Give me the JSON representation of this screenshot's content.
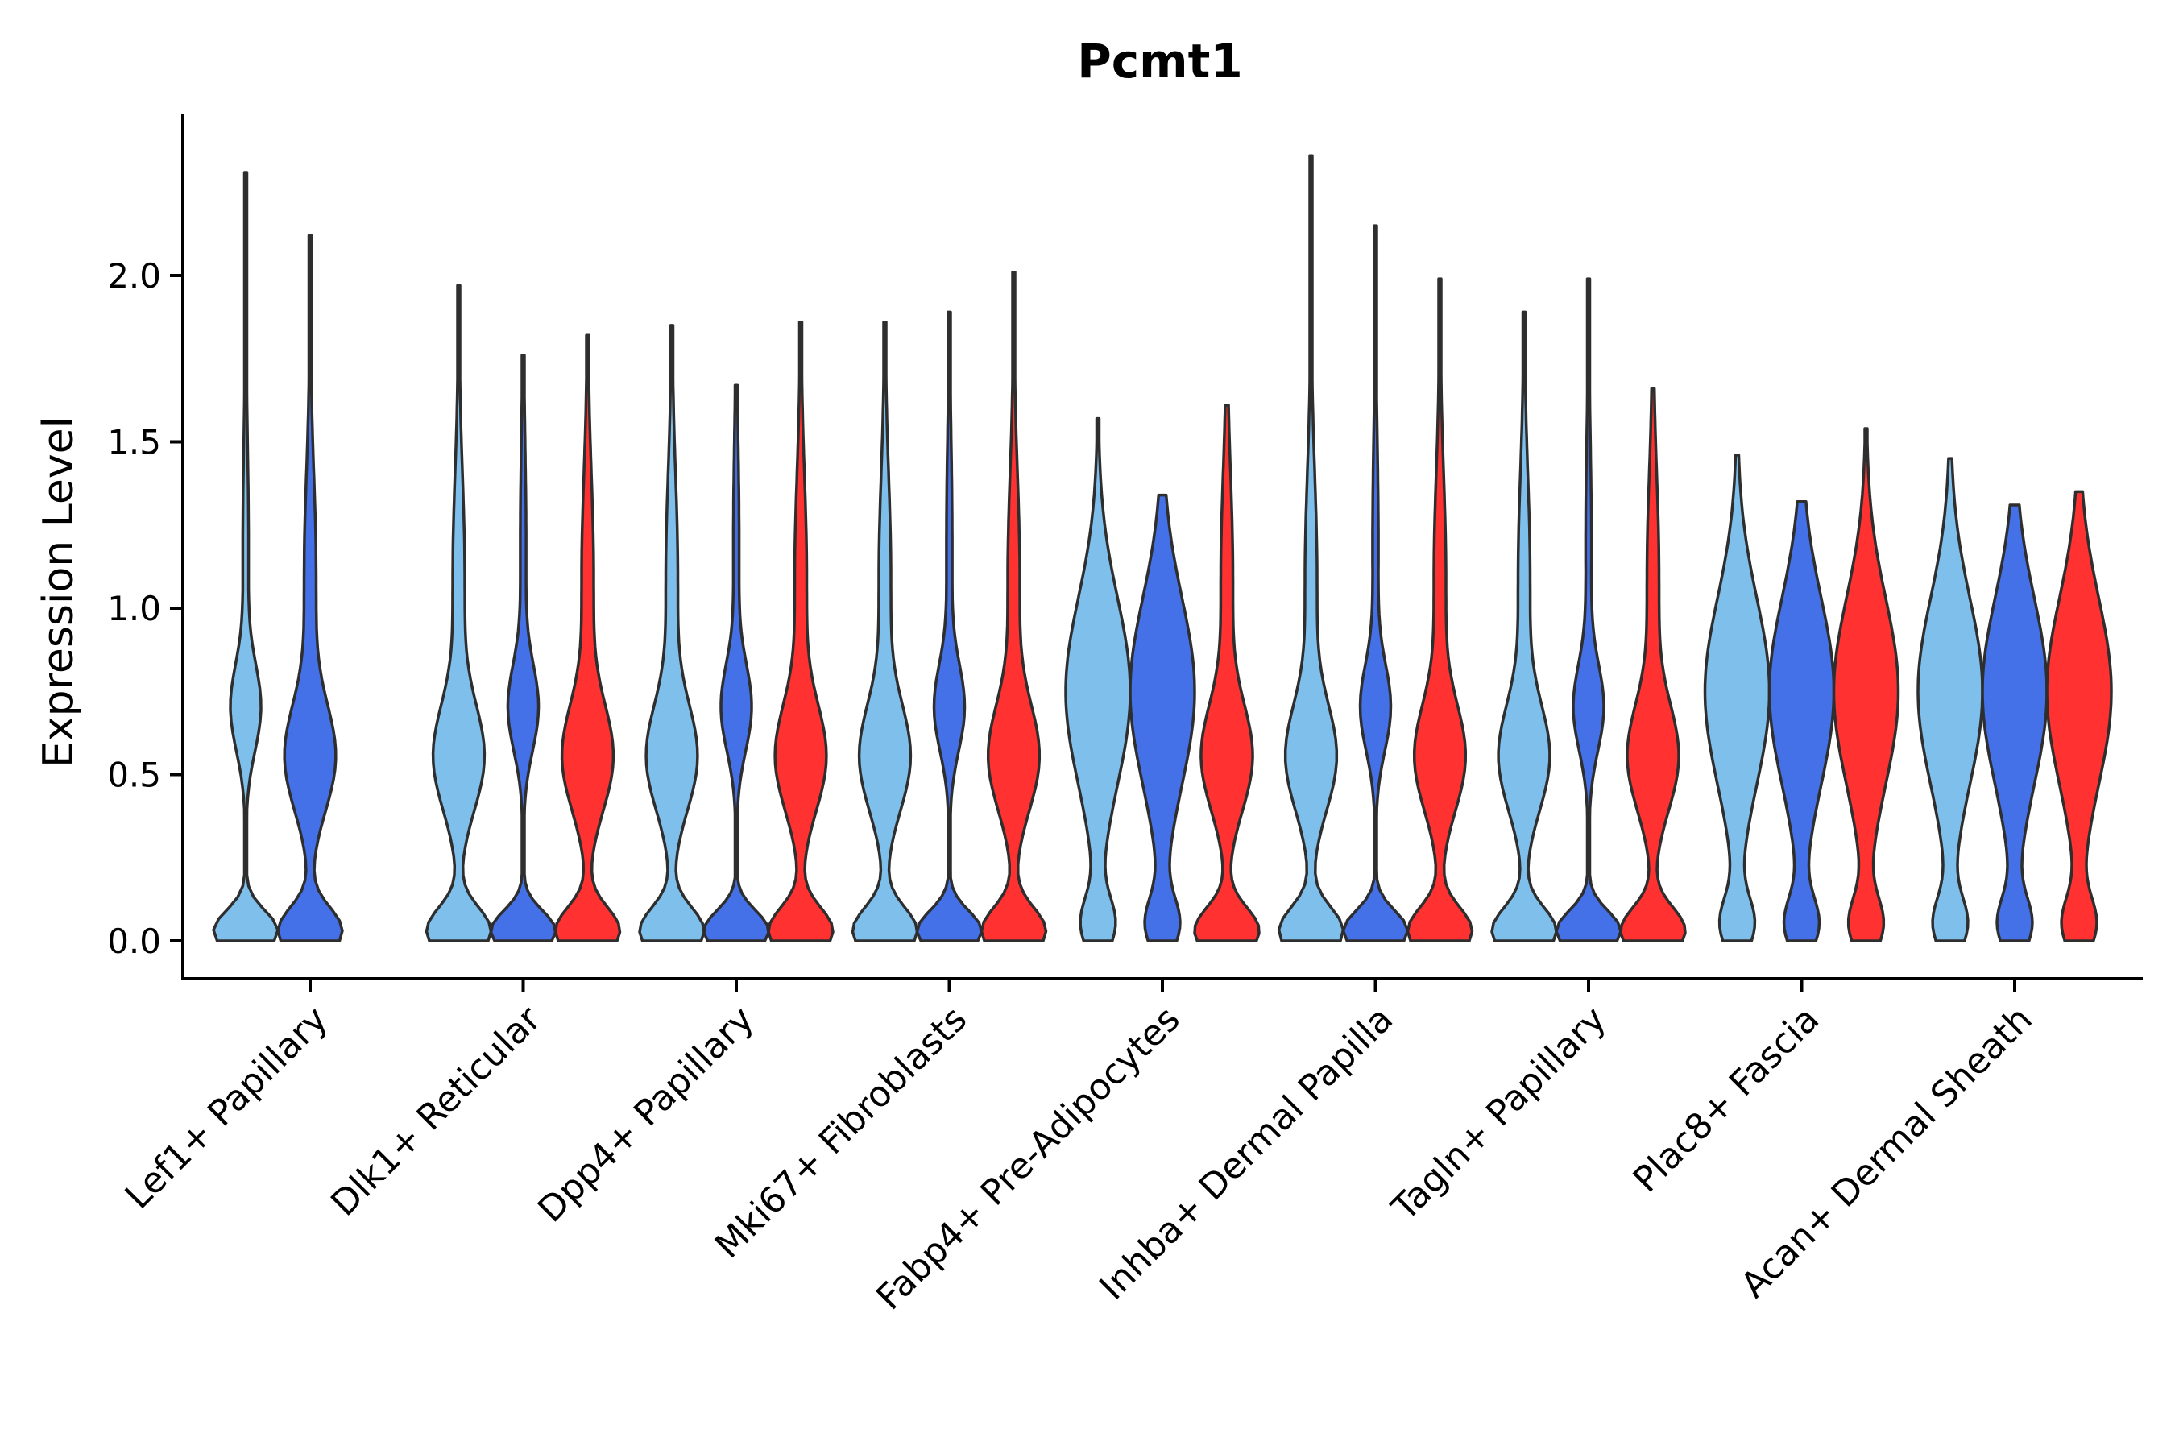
{
  "chart_data": {
    "type": "violin",
    "title": "Pcmt1",
    "xlabel": "",
    "ylabel": "Expression Level",
    "ylim": [
      -0.12,
      2.48
    ],
    "yticks": [
      "0.0",
      "0.5",
      "1.0",
      "1.5",
      "2.0"
    ],
    "ytick_values": [
      0.0,
      0.5,
      1.0,
      1.5,
      2.0
    ],
    "grid": false,
    "legend": "none",
    "group_colors": [
      "#7ebfec",
      "#4470e8",
      "#ff3131"
    ],
    "categories": [
      "Lef1+ Papillary",
      "Dlk1+ Reticular",
      "Dpp4+ Papillary",
      "Mki67+ Fibroblasts",
      "Fabp4+ Pre-Adipocytes",
      "Inhba+ Dermal Papilla",
      "Tagln+ Papillary",
      "Plac8+ Fascia",
      "Acan+ Dermal Sheath"
    ],
    "violins": [
      {
        "category": "Lef1+ Papillary",
        "group": 0,
        "max": 2.31
      },
      {
        "category": "Lef1+ Papillary",
        "group": 1,
        "max": 2.12
      },
      {
        "category": "Dlk1+ Reticular",
        "group": 0,
        "max": 1.97
      },
      {
        "category": "Dlk1+ Reticular",
        "group": 1,
        "max": 1.76
      },
      {
        "category": "Dlk1+ Reticular",
        "group": 2,
        "max": 1.82
      },
      {
        "category": "Dpp4+ Papillary",
        "group": 0,
        "max": 1.85
      },
      {
        "category": "Dpp4+ Papillary",
        "group": 1,
        "max": 1.67
      },
      {
        "category": "Dpp4+ Papillary",
        "group": 2,
        "max": 1.86
      },
      {
        "category": "Mki67+ Fibroblasts",
        "group": 0,
        "max": 1.86
      },
      {
        "category": "Mki67+ Fibroblasts",
        "group": 1,
        "max": 1.89
      },
      {
        "category": "Mki67+ Fibroblasts",
        "group": 2,
        "max": 2.01
      },
      {
        "category": "Fabp4+ Pre-Adipocytes",
        "group": 0,
        "max": 1.57
      },
      {
        "category": "Fabp4+ Pre-Adipocytes",
        "group": 1,
        "max": 1.34
      },
      {
        "category": "Fabp4+ Pre-Adipocytes",
        "group": 2,
        "max": 1.61
      },
      {
        "category": "Inhba+ Dermal Papilla",
        "group": 0,
        "max": 2.36
      },
      {
        "category": "Inhba+ Dermal Papilla",
        "group": 1,
        "max": 2.15
      },
      {
        "category": "Inhba+ Dermal Papilla",
        "group": 2,
        "max": 1.99
      },
      {
        "category": "Tagln+ Papillary",
        "group": 0,
        "max": 1.89
      },
      {
        "category": "Tagln+ Papillary",
        "group": 1,
        "max": 1.99
      },
      {
        "category": "Tagln+ Papillary",
        "group": 2,
        "max": 1.66
      },
      {
        "category": "Plac8+ Fascia",
        "group": 0,
        "max": 1.46
      },
      {
        "category": "Plac8+ Fascia",
        "group": 1,
        "max": 1.32
      },
      {
        "category": "Plac8+ Fascia",
        "group": 2,
        "max": 1.54
      },
      {
        "category": "Acan+ Dermal Sheath",
        "group": 0,
        "max": 1.45
      },
      {
        "category": "Acan+ Dermal Sheath",
        "group": 1,
        "max": 1.31
      },
      {
        "category": "Acan+ Dermal Sheath",
        "group": 2,
        "max": 1.35
      }
    ]
  }
}
